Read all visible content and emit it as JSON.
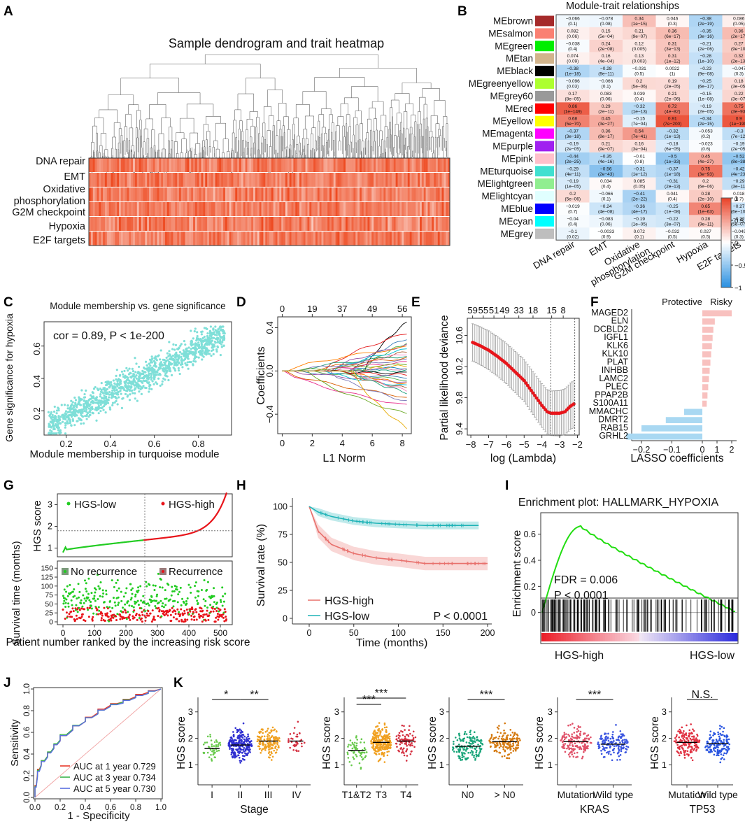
{
  "panel_letters": [
    "A",
    "B",
    "C",
    "D",
    "E",
    "F",
    "G",
    "H",
    "I",
    "J",
    "K"
  ],
  "chart_data": [
    {
      "panel": "A",
      "type": "heatmap",
      "title": "Sample dendrogram and trait heatmap",
      "traits": [
        "DNA repair",
        "EMT",
        "Oxidative phosphorylation",
        "G2M checkpoint",
        "Hypoxia",
        "E2F targets"
      ],
      "color_low": "#ffffff",
      "color_high": "#ee4b22"
    },
    {
      "panel": "B",
      "type": "heatmap",
      "title": "Module-trait relationships",
      "rows": [
        "MEbrown",
        "MEsalmon",
        "MEgreen",
        "MEtan",
        "MEblack",
        "MEgreenyellow",
        "MEgrey60",
        "MEred",
        "MEyellow",
        "MEmagenta",
        "MEpurple",
        "MEpink",
        "MEturquoise",
        "MElightgreen",
        "MElightcyan",
        "MEblue",
        "MEcyan",
        "MEgrey"
      ],
      "row_colors": [
        "#a52a2a",
        "#fa8072",
        "#00ee00",
        "#d2b48c",
        "#000000",
        "#adff2f",
        "#999999",
        "#ff0000",
        "#ffff00",
        "#ff00ff",
        "#a020f0",
        "#ffc0cb",
        "#40e0d0",
        "#90ee90",
        "#e0ffff",
        "#0000ff",
        "#00ffff",
        "#bebebe"
      ],
      "columns": [
        "DNA repair",
        "EMT",
        "Oxidative phosphorylation",
        "G2M checkpoint",
        "Hypoxia",
        "E2F targets"
      ],
      "cor": [
        [
          "−0.066",
          "−0.078",
          "0.34",
          "0.046",
          "−0.38",
          "0.086"
        ],
        [
          "0.082",
          "0.15",
          "0.21",
          "0.36",
          "−0.35",
          "0.36"
        ],
        [
          "−0.038",
          "0.24",
          "0.12",
          "0.31",
          "−0.21",
          "0.27"
        ],
        [
          "0.074",
          "0.16",
          "0.13",
          "0.31",
          "−0.28",
          "0.32"
        ],
        [
          "−0.38",
          "−0.28",
          "−0.031",
          "0.0022",
          "−0.23",
          "−0.047"
        ],
        [
          "−0.096",
          "−0.066",
          "0.2",
          "0.19",
          "−0.25",
          "0.18"
        ],
        [
          "0.17",
          "0.083",
          "0.039",
          "0.21",
          "−0.15",
          "0.22"
        ],
        [
          "0.86",
          "0.29",
          "−0.32",
          "0.72",
          "−0.19",
          "0.75"
        ],
        [
          "0.68",
          "0.45",
          "−0.15",
          "0.91",
          "−0.34",
          "0.9"
        ],
        [
          "−0.37",
          "0.36",
          "0.54",
          "−0.32",
          "−0.053",
          "−0.3"
        ],
        [
          "−0.19",
          "0.21",
          "0.16",
          "−0.18",
          "−0.023",
          "−0.19"
        ],
        [
          "−0.44",
          "−0.35",
          "−0.01",
          "−0.5",
          "0.45",
          "−0.52"
        ],
        [
          "−0.29",
          "−0.56",
          "−0.31",
          "−0.37",
          "0.75",
          "−0.42"
        ],
        [
          "−0.19",
          "0.034",
          "0.085",
          "−0.31",
          "0.2",
          "−0.29"
        ],
        [
          "0.2",
          "−0.066",
          "−0.41",
          "0.041",
          "0.28",
          "0.018"
        ],
        [
          "−0.019",
          "−0.24",
          "−0.36",
          "−0.25",
          "0.65",
          "−0.27"
        ],
        [
          "−0.04",
          "−0.083",
          "−0.19",
          "−0.22",
          "0.28",
          "−0.22"
        ],
        [
          "−0.1",
          "−0.0033",
          "0.072",
          "−0.032",
          "0.027",
          "−0.049"
        ]
      ],
      "pvals": [
        [
          "(0.1)",
          "(0.08)",
          "(1e−15)",
          "(0.3)",
          "(2e−19)",
          "(0.05)"
        ],
        [
          "(0.06)",
          "(5e−04)",
          "(9e−07)",
          "(6e−17)",
          "(3e−16)",
          "(2e−17)"
        ],
        [
          "(0.4)",
          "(2e−08)",
          "(0.005)",
          "(3e−13)",
          "(2e−06)",
          "(9e−10)"
        ],
        [
          "(0.09)",
          "(4e−04)",
          "(0.003)",
          "(1e−12)",
          "(1e−10)",
          "(2e−13)"
        ],
        [
          "(1e−18)",
          "(9e−11)",
          "(0.5)",
          "(1)",
          "(9e−08)",
          "(0.3)"
        ],
        [
          "(0.03)",
          "(0.1)",
          "(5e−06)",
          "(2e−05)",
          "(6e−17)",
          "(3e−05)"
        ],
        [
          "(8e−05)",
          "(0.06)",
          "(0.4)",
          "(2e−06)",
          "(1e−08)",
          "(3e−07)"
        ],
        [
          "(1e−149)",
          "(2e−11)",
          "(1e−13)",
          "(4e−82)",
          "(2e−05)",
          "(3e−93)"
        ],
        [
          "(5e−70)",
          "(3e−27)",
          "(7e−04)",
          "(7e−200)",
          "(2e−15)",
          "(1e−190)"
        ],
        [
          "(3e−18)",
          "(8e−17)",
          "(7e−41)",
          "(1e−13)",
          "(0.2)",
          "(7e−12)"
        ],
        [
          "(2e−05)",
          "(9e−07)",
          "(3e−04)",
          "(6e−05)",
          "(0.6)",
          "(2e−05)"
        ],
        [
          "(2e−25)",
          "(4e−16)",
          "(0.8)",
          "(1e−33)",
          "(4e−27)",
          "(8e−38)"
        ],
        [
          "(4e−11)",
          "(2e−43)",
          "(1e−12)",
          "(1e−18)",
          "(3e−93)",
          "(4e−23)"
        ],
        [
          "(1e−05)",
          "(0.4)",
          "(0.05)",
          "(2e−13)",
          "(6e−06)",
          "(3e−11)"
        ],
        [
          "(5e−06)",
          "(0.1)",
          "(2e−22)",
          "(0.4)",
          "(2e−10)",
          "(0.7)"
        ],
        [
          "(0.7)",
          "(4e−08)",
          "(4e−17)",
          "(1e−08)",
          "(1e−63)",
          "(6e−10)"
        ],
        [
          "(0.4)",
          "(0.06)",
          "(1e−05)",
          "(3e−07)",
          "(9e−11)",
          "(5e−07)"
        ],
        [
          "(0.02)",
          "(0.9)",
          "(0.1)",
          "(0.5)",
          "(0.5)",
          "(0.3)"
        ]
      ],
      "colorbar_ticks": [
        "1",
        "0.5",
        "0",
        "−0.5",
        "−1"
      ]
    },
    {
      "panel": "C",
      "type": "scatter",
      "title": "Module membership vs. gene significance",
      "annotation": "cor = 0.89, P < 1e-200",
      "xlabel": "Module membership in turquoise module",
      "ylabel": "Gene significance for hypoxia",
      "xticks": [
        "0.2",
        "0.4",
        "0.6",
        "0.8"
      ],
      "yticks": [
        "0.2",
        "0.4",
        "0.6"
      ],
      "xlim": [
        0.1,
        0.95
      ],
      "ylim": [
        0.05,
        0.75
      ],
      "color": "#7fdfd8",
      "n_points": 1200
    },
    {
      "panel": "D",
      "type": "line",
      "xlabel": "L1 Norm",
      "ylabel": "Coefficients",
      "xticks": [
        "0",
        "2",
        "4",
        "6",
        "8"
      ],
      "yticks": [
        "0.4",
        "0.0",
        "−0.4"
      ],
      "top_ticks": [
        "0",
        "19",
        "37",
        "49",
        "56"
      ],
      "xlim": [
        -0.3,
        8.6
      ],
      "ylim": [
        -0.58,
        0.5
      ],
      "end_values": [
        0.45,
        0.35,
        0.3,
        0.26,
        0.24,
        0.22,
        0.2,
        0.18,
        0.16,
        0.14,
        0.12,
        0.1,
        0.08,
        0.06,
        0.05,
        0.03,
        0.02,
        0.0,
        -0.02,
        -0.04,
        -0.06,
        -0.08,
        -0.1,
        -0.12,
        -0.14,
        -0.16,
        -0.18,
        -0.2,
        -0.24,
        -0.28,
        -0.32,
        -0.4,
        -0.53
      ]
    },
    {
      "panel": "E",
      "type": "line",
      "xlabel": "log (Lambda)",
      "ylabel": "Partial likelihood deviance",
      "xticks": [
        "−8",
        "−7",
        "−6",
        "−5",
        "−4",
        "−3",
        "−2"
      ],
      "yticks": [
        "10.6",
        "10.2",
        "9.8",
        "9.4"
      ],
      "top_ticks": [
        "59",
        "55",
        "51",
        "49",
        "33",
        "18",
        "15",
        "8"
      ],
      "xlim": [
        -8.2,
        -1.9
      ],
      "ylim": [
        9.32,
        10.82
      ],
      "vlines": [
        -3.5,
        -2.15
      ],
      "curve": [
        [
          -7.9,
          10.51
        ],
        [
          -7.5,
          10.47
        ],
        [
          -7.0,
          10.41
        ],
        [
          -6.5,
          10.33
        ],
        [
          -6.0,
          10.24
        ],
        [
          -5.5,
          10.13
        ],
        [
          -5.0,
          10.02
        ],
        [
          -4.5,
          9.86
        ],
        [
          -4.0,
          9.7
        ],
        [
          -3.7,
          9.62
        ],
        [
          -3.5,
          9.6
        ],
        [
          -3.0,
          9.6
        ],
        [
          -2.7,
          9.62
        ],
        [
          -2.4,
          9.69
        ],
        [
          -2.2,
          9.72
        ]
      ]
    },
    {
      "panel": "F",
      "type": "bar",
      "categories": [
        "MAGED2",
        "ELN",
        "DCBLD2",
        "IGFL1",
        "KLK6",
        "KLK10",
        "PLAT",
        "INHBB",
        "LAMC2",
        "PLEC",
        "PPAP2B",
        "S100A11",
        "MMACHC",
        "DMRT2",
        "RAB15",
        "GRHL2"
      ],
      "values": [
        2.0,
        0.85,
        0.75,
        0.7,
        0.65,
        0.6,
        0.55,
        0.5,
        0.45,
        0.4,
        0.35,
        0.3,
        -0.06,
        -0.12,
        -0.2,
        -0.25
      ],
      "xlabel": "LASSO coefficients",
      "xticks": [
        "−0.2",
        "−0.1",
        "0",
        "1",
        "2"
      ],
      "labels_top": [
        "Protective",
        "Risky"
      ],
      "colors": {
        "positive": "#f8c1bf",
        "negative": "#a9d8f2"
      }
    },
    {
      "panel": "G",
      "type": "scatter",
      "ylabel_top": "HGS score",
      "ylabel_bottom": "Survival time (months)",
      "xlabel": "Patient number ranked by the increasing risk score",
      "legend_top": [
        "HGS-low",
        "HGS-high"
      ],
      "legend_bottom": [
        "No recurrence",
        "Recurrence"
      ],
      "yticks_top": [
        "1",
        "2",
        "3"
      ],
      "yticks_bottom": [
        "0",
        "25",
        "50",
        "75",
        "100",
        "125",
        "150"
      ],
      "xticks": [
        "0",
        "100",
        "200",
        "300",
        "400",
        "500"
      ],
      "cutoff_score": 1.8,
      "n_patients": 520
    },
    {
      "panel": "H",
      "type": "line",
      "xlabel": "Time (months)",
      "ylabel": "Survival rate (%)",
      "xticks": [
        "0",
        "50",
        "100",
        "150",
        "200"
      ],
      "yticks": [
        "0",
        "25",
        "50",
        "75",
        "100"
      ],
      "series": [
        {
          "name": "HGS-high",
          "color": "#e8706c",
          "x": [
            0,
            10,
            25,
            50,
            75,
            100,
            130,
            200
          ],
          "values": [
            100,
            78,
            66,
            58,
            54,
            52,
            49,
            49
          ]
        },
        {
          "name": "HGS-low",
          "color": "#1eb3b7",
          "x": [
            0,
            10,
            25,
            50,
            75,
            100,
            130,
            190
          ],
          "values": [
            100,
            95,
            91,
            87,
            85,
            84,
            83,
            83
          ]
        }
      ],
      "pvalue": "P < 0.0001"
    },
    {
      "panel": "I",
      "type": "line",
      "title": "Enrichment plot: HALLMARK_HYPOXIA",
      "ylabel": "Enrichment score",
      "yticks": [
        "0.6",
        "0.4",
        "0.2",
        "0"
      ],
      "annotation": [
        "FDR = 0.006",
        "P  < 0.0001"
      ],
      "xlabels": [
        "HGS-high",
        "HGS-low"
      ],
      "peak": 0.66
    },
    {
      "panel": "J",
      "type": "line",
      "xlabel": "1 - Specificity",
      "ylabel": "Sensitivity",
      "xticks": [
        "0.0",
        "0.2",
        "0.4",
        "0.6",
        "0.8",
        "1.0"
      ],
      "yticks": [
        "0.0",
        "0.2",
        "0.4",
        "0.6",
        "0.8",
        "1.0"
      ],
      "series": [
        {
          "name": "AUC at 1 year 0.729",
          "color": "#e8392a",
          "x": [
            0,
            0.02,
            0.05,
            0.1,
            0.15,
            0.2,
            0.3,
            0.4,
            0.5,
            0.6,
            0.7,
            0.8,
            0.9,
            1
          ],
          "values": [
            0,
            0.22,
            0.3,
            0.38,
            0.45,
            0.52,
            0.62,
            0.7,
            0.78,
            0.85,
            0.88,
            0.93,
            0.97,
            1
          ]
        },
        {
          "name": "AUC at 3 year 0.734",
          "color": "#3cb34a",
          "x": [
            0,
            0.02,
            0.05,
            0.1,
            0.15,
            0.2,
            0.3,
            0.4,
            0.5,
            0.6,
            0.7,
            0.8,
            0.9,
            1
          ],
          "values": [
            0,
            0.2,
            0.3,
            0.38,
            0.46,
            0.53,
            0.63,
            0.7,
            0.77,
            0.84,
            0.88,
            0.92,
            0.96,
            1
          ]
        },
        {
          "name": "AUC at 5 year 0.730",
          "color": "#5a6fe0",
          "x": [
            0,
            0.02,
            0.05,
            0.1,
            0.15,
            0.2,
            0.3,
            0.4,
            0.5,
            0.6,
            0.7,
            0.8,
            0.9,
            1
          ],
          "values": [
            0,
            0.19,
            0.29,
            0.37,
            0.45,
            0.52,
            0.62,
            0.7,
            0.77,
            0.84,
            0.87,
            0.92,
            0.96,
            1
          ]
        }
      ]
    },
    {
      "panel": "K",
      "type": "scatter",
      "ylabel": "HGS score",
      "yticks": [
        "1",
        "2",
        "3"
      ],
      "subplots": [
        {
          "groups": [
            "I",
            "II",
            "III",
            "IV"
          ],
          "colors": [
            "#66c94a",
            "#2f2fd0",
            "#f0a020",
            "#d43040"
          ],
          "medians": [
            1.62,
            1.75,
            1.9,
            1.9
          ],
          "sig": [
            {
              "label": "*",
              "from": 0,
              "to": 1
            },
            {
              "label": "**",
              "from": 1,
              "to": 2
            }
          ],
          "xlabel": "Stage"
        },
        {
          "groups": [
            "T1&T2",
            "T3",
            "T4"
          ],
          "colors": [
            "#66c94a",
            "#f0a020",
            "#d43040"
          ],
          "medians": [
            1.55,
            1.85,
            1.9
          ],
          "sig": [
            {
              "label": "***",
              "from": 0,
              "to": 2
            },
            {
              "label": "***",
              "from": 0,
              "to": 1
            }
          ],
          "xlabel": ""
        },
        {
          "groups": [
            "N0",
            "> N0"
          ],
          "colors": [
            "#1aa57a",
            "#d57a10"
          ],
          "medians": [
            1.7,
            1.88
          ],
          "sig": [
            {
              "label": "***",
              "from": 0,
              "to": 1
            }
          ],
          "xlabel": ""
        },
        {
          "groups": [
            "Mutation",
            "Wild type"
          ],
          "colors": [
            "#e05068",
            "#3a55e0"
          ],
          "medians": [
            1.88,
            1.78
          ],
          "sig": [
            {
              "label": "***",
              "from": 0,
              "to": 1
            }
          ],
          "xlabel": "KRAS"
        },
        {
          "groups": [
            "Mutation",
            "Wild type"
          ],
          "colors": [
            "#e03040",
            "#2a55e0"
          ],
          "medians": [
            1.85,
            1.8
          ],
          "sig": [
            {
              "label": "N.S.",
              "from": 0,
              "to": 1
            }
          ],
          "xlabel": "TP53"
        }
      ]
    }
  ]
}
